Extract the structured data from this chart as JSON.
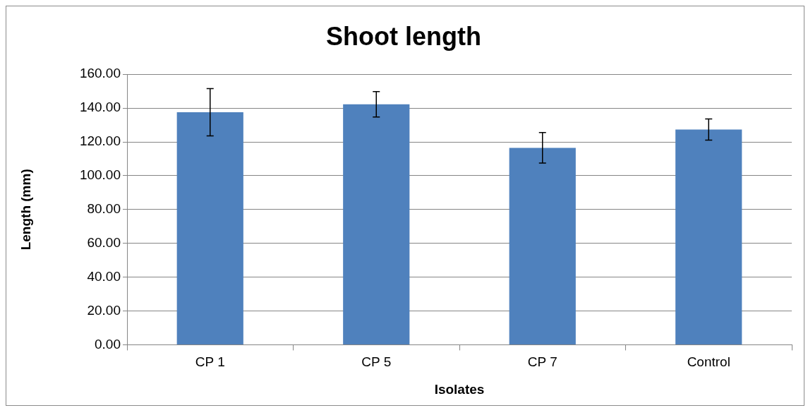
{
  "chart_data": {
    "type": "bar",
    "title": "Shoot length",
    "xlabel": "Isolates",
    "ylabel": "Length (mm)",
    "categories": [
      "CP 1",
      "CP 5",
      "CP 7",
      "Control"
    ],
    "values": [
      137.5,
      142.2,
      116.5,
      127.3
    ],
    "errors": [
      14,
      7.5,
      9,
      6.3
    ],
    "color": "#4f81bd",
    "ylim": [
      0,
      160
    ],
    "yticks": [
      {
        "value": 0,
        "label": "0.00"
      },
      {
        "value": 20,
        "label": "20.00"
      },
      {
        "value": 40,
        "label": "40.00"
      },
      {
        "value": 60,
        "label": "60.00"
      },
      {
        "value": 80,
        "label": "80.00"
      },
      {
        "value": 100,
        "label": "100.00"
      },
      {
        "value": 120,
        "label": "120.00"
      },
      {
        "value": 140,
        "label": "140.00"
      },
      {
        "value": 160,
        "label": "160.00"
      }
    ],
    "grid": "y"
  }
}
